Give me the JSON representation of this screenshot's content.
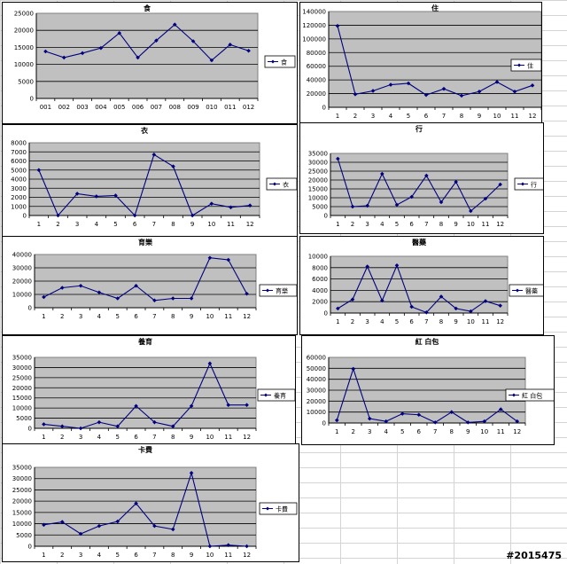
{
  "chart_data": [
    {
      "type": "line",
      "title": "食",
      "categories": [
        "001",
        "002",
        "003",
        "004",
        "005",
        "006",
        "007",
        "008",
        "009",
        "010",
        "011",
        "012"
      ],
      "series": [
        {
          "name": "食",
          "values": [
            13800,
            12000,
            13300,
            14800,
            19200,
            12000,
            17000,
            21700,
            16800,
            11200,
            15800,
            14000
          ]
        }
      ],
      "ylim": [
        0,
        25000
      ],
      "yticks": [
        0,
        5000,
        10000,
        15000,
        20000,
        25000
      ],
      "ytick_labels": [
        "0",
        "5000",
        "10000",
        "15000",
        "20000",
        "25000"
      ],
      "grid": true,
      "legend": "right",
      "plot_color": "#c0c0c0",
      "line_color": "#000080"
    },
    {
      "type": "line",
      "title": "住",
      "categories": [
        "1",
        "2",
        "3",
        "4",
        "5",
        "6",
        "7",
        "8",
        "9",
        "10",
        "11",
        "12"
      ],
      "series": [
        {
          "name": "住",
          "values": [
            119000,
            19000,
            24000,
            33000,
            35000,
            18000,
            27000,
            17000,
            23000,
            37000,
            23000,
            32000
          ]
        }
      ],
      "ylim": [
        0,
        140000
      ],
      "yticks": [
        0,
        20000,
        40000,
        60000,
        80000,
        100000,
        120000,
        140000
      ],
      "ytick_labels": [
        "0",
        "20000",
        "40000",
        "60000",
        "80000",
        "100000",
        "120000",
        "140000"
      ],
      "grid": true,
      "legend": "right",
      "plot_color": "#c0c0c0",
      "line_color": "#000080"
    },
    {
      "type": "line",
      "title": "衣",
      "categories": [
        "1",
        "2",
        "3",
        "4",
        "5",
        "6",
        "7",
        "8",
        "9",
        "10",
        "11",
        "12"
      ],
      "series": [
        {
          "name": "衣",
          "values": [
            5000,
            0,
            2400,
            2100,
            2200,
            0,
            6700,
            5400,
            0,
            1300,
            900,
            1100
          ]
        }
      ],
      "ylim": [
        0,
        8000
      ],
      "yticks": [
        0,
        1000,
        2000,
        3000,
        4000,
        5000,
        6000,
        7000,
        8000
      ],
      "ytick_labels": [
        "0",
        "1000",
        "2000",
        "3000",
        "4000",
        "5000",
        "6000",
        "7000",
        "8000"
      ],
      "grid": true,
      "legend": "right",
      "plot_color": "#c0c0c0",
      "line_color": "#000080"
    },
    {
      "type": "line",
      "title": "行",
      "categories": [
        "1",
        "2",
        "3",
        "4",
        "5",
        "6",
        "7",
        "8",
        "9",
        "10",
        "11",
        "12"
      ],
      "series": [
        {
          "name": "行",
          "values": [
            32000,
            5000,
            5500,
            23500,
            6000,
            10500,
            22500,
            7500,
            19000,
            2500,
            9500,
            17500
          ]
        }
      ],
      "ylim": [
        0,
        35000
      ],
      "yticks": [
        0,
        5000,
        10000,
        15000,
        20000,
        25000,
        30000,
        35000
      ],
      "ytick_labels": [
        "0",
        "5000",
        "10000",
        "15000",
        "20000",
        "25000",
        "30000",
        "35000"
      ],
      "grid": true,
      "legend": "right",
      "plot_color": "#c0c0c0",
      "line_color": "#000080"
    },
    {
      "type": "line",
      "title": "育樂",
      "categories": [
        "1",
        "2",
        "3",
        "4",
        "5",
        "6",
        "7",
        "8",
        "9",
        "10",
        "11",
        "12"
      ],
      "series": [
        {
          "name": "育樂",
          "values": [
            8000,
            15000,
            16500,
            11500,
            7000,
            16500,
            5500,
            7000,
            7000,
            37500,
            36000,
            10500
          ]
        }
      ],
      "ylim": [
        0,
        40000
      ],
      "yticks": [
        0,
        10000,
        20000,
        30000,
        40000
      ],
      "ytick_labels": [
        "0",
        "10000",
        "20000",
        "30000",
        "40000"
      ],
      "grid": true,
      "legend": "right",
      "plot_color": "#c0c0c0",
      "line_color": "#000080"
    },
    {
      "type": "line",
      "title": "醫藥",
      "categories": [
        "1",
        "2",
        "3",
        "4",
        "5",
        "6",
        "7",
        "8",
        "9",
        "10",
        "11",
        "12"
      ],
      "series": [
        {
          "name": "醫藥",
          "values": [
            800,
            2400,
            8200,
            2200,
            8400,
            1100,
            100,
            2900,
            800,
            300,
            2100,
            1300
          ]
        }
      ],
      "ylim": [
        0,
        10000
      ],
      "yticks": [
        0,
        2000,
        4000,
        6000,
        8000,
        10000
      ],
      "ytick_labels": [
        "0",
        "2000",
        "4000",
        "6000",
        "8000",
        "10000"
      ],
      "grid": true,
      "legend": "right",
      "plot_color": "#c0c0c0",
      "line_color": "#000080"
    },
    {
      "type": "line",
      "title": "養育",
      "categories": [
        "1",
        "2",
        "3",
        "4",
        "5",
        "6",
        "7",
        "8",
        "9",
        "10",
        "11",
        "12"
      ],
      "series": [
        {
          "name": "養育",
          "values": [
            2000,
            1000,
            0,
            3000,
            1000,
            11000,
            3000,
            1000,
            11000,
            32000,
            11500,
            11500
          ]
        }
      ],
      "ylim": [
        0,
        35000
      ],
      "yticks": [
        0,
        5000,
        10000,
        15000,
        20000,
        25000,
        30000,
        35000
      ],
      "ytick_labels": [
        "0",
        "5000",
        "10000",
        "15000",
        "20000",
        "25000",
        "30000",
        "35000"
      ],
      "grid": true,
      "legend": "right",
      "plot_color": "#c0c0c0",
      "line_color": "#000080"
    },
    {
      "type": "line",
      "title": "紅 白包",
      "categories": [
        "1",
        "2",
        "3",
        "4",
        "5",
        "6",
        "7",
        "8",
        "9",
        "10",
        "11",
        "12"
      ],
      "series": [
        {
          "name": "紅 白包",
          "values": [
            2500,
            49500,
            4000,
            1500,
            8500,
            7500,
            500,
            10000,
            500,
            1500,
            12500,
            1500
          ]
        }
      ],
      "ylim": [
        0,
        60000
      ],
      "yticks": [
        0,
        10000,
        20000,
        30000,
        40000,
        50000,
        60000
      ],
      "ytick_labels": [
        "0",
        "10000",
        "20000",
        "30000",
        "40000",
        "50000",
        "60000"
      ],
      "grid": true,
      "legend": "right",
      "plot_color": "#c0c0c0",
      "line_color": "#000080"
    },
    {
      "type": "line",
      "title": "卡費",
      "categories": [
        "1",
        "2",
        "3",
        "4",
        "5",
        "6",
        "7",
        "8",
        "9",
        "10",
        "11",
        "12"
      ],
      "series": [
        {
          "name": "卡費",
          "values": [
            9500,
            10800,
            5500,
            9000,
            11000,
            19000,
            9000,
            7500,
            32500,
            0,
            500,
            0
          ]
        }
      ],
      "ylim": [
        0,
        35000
      ],
      "yticks": [
        0,
        5000,
        10000,
        15000,
        20000,
        25000,
        30000,
        35000
      ],
      "ytick_labels": [
        "0",
        "5000",
        "10000",
        "15000",
        "20000",
        "25000",
        "30000",
        "35000"
      ],
      "grid": true,
      "legend": "right",
      "plot_color": "#c0c0c0",
      "line_color": "#000080"
    }
  ],
  "watermark": "#2015475"
}
